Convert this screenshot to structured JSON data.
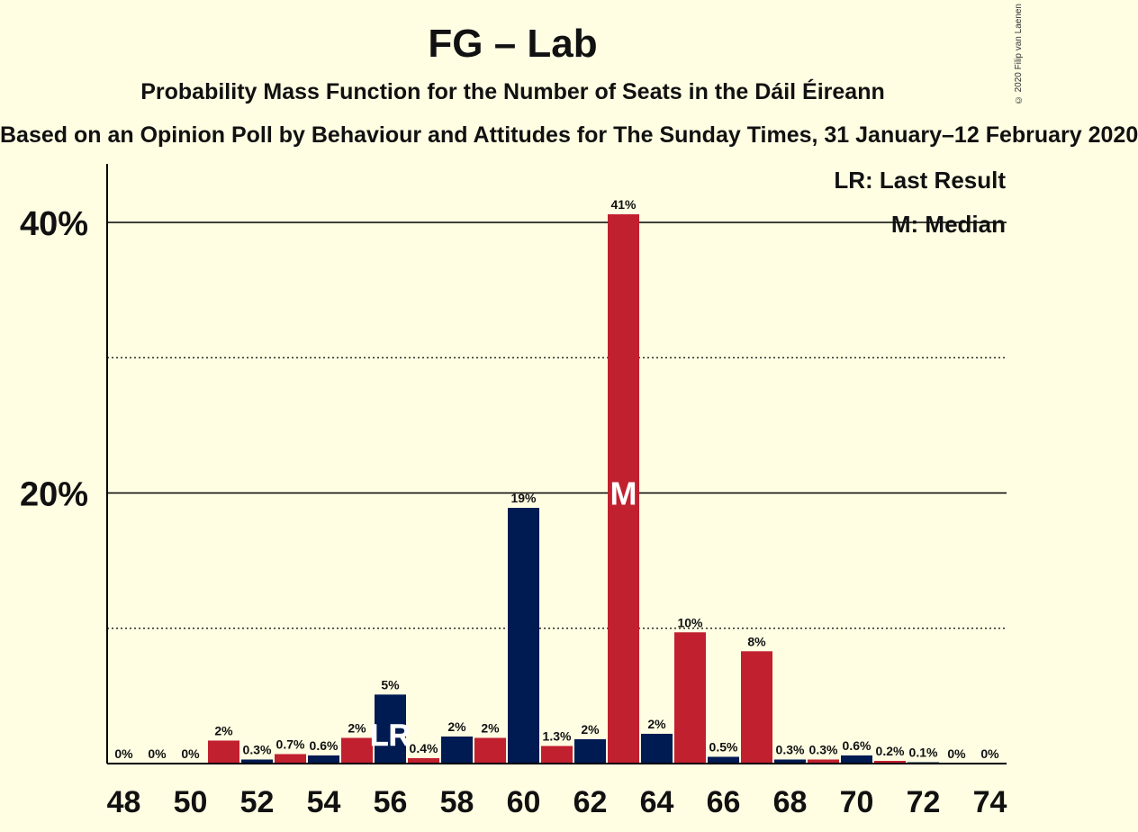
{
  "title": "FG – Lab",
  "subtitle": "Probability Mass Function for the Number of Seats in the Dáil Éireann",
  "source": "Based on an Opinion Poll by Behaviour and Attitudes for The Sunday Times, 31 January–12 February 2020",
  "copyright": "© 2020 Filip van Laenen",
  "legend": {
    "last_result": "LR: Last Result",
    "median": "M: Median"
  },
  "colors": {
    "FG": "#001A52",
    "Lab": "#C1202F",
    "background": "#FFFEE3"
  },
  "chart_data": {
    "type": "bar",
    "ylim": [
      0,
      44
    ],
    "y_ticks": [
      {
        "value": 20,
        "label": "20%"
      },
      {
        "value": 40,
        "label": "40%"
      }
    ],
    "y_minor": [
      10,
      30
    ],
    "x_ticks": [
      48,
      50,
      52,
      54,
      56,
      58,
      60,
      62,
      64,
      66,
      68,
      70,
      72,
      74
    ],
    "last_result": {
      "seat": 56,
      "marker": "LR"
    },
    "median": {
      "seat": 63,
      "marker": "M"
    },
    "bars": [
      {
        "seat": 48,
        "value": 0,
        "label": "0%"
      },
      {
        "seat": 49,
        "value": 0,
        "label": "0%"
      },
      {
        "seat": 50,
        "value": 0,
        "label": "0%"
      },
      {
        "seat": 51,
        "value": 1.7,
        "label": "2%"
      },
      {
        "seat": 52,
        "value": 0.3,
        "label": "0.3%"
      },
      {
        "seat": 53,
        "value": 0.7,
        "label": "0.7%"
      },
      {
        "seat": 54,
        "value": 0.6,
        "label": "0.6%"
      },
      {
        "seat": 55,
        "value": 1.9,
        "label": "2%"
      },
      {
        "seat": 56,
        "value": 5.1,
        "label": "5%"
      },
      {
        "seat": 57,
        "value": 0.4,
        "label": "0.4%"
      },
      {
        "seat": 58,
        "value": 2.0,
        "label": "2%"
      },
      {
        "seat": 59,
        "value": 1.9,
        "label": "2%"
      },
      {
        "seat": 60,
        "value": 18.9,
        "label": "19%"
      },
      {
        "seat": 61,
        "value": 1.3,
        "label": "1.3%"
      },
      {
        "seat": 62,
        "value": 1.8,
        "label": "2%"
      },
      {
        "seat": 63,
        "value": 40.6,
        "label": "41%"
      },
      {
        "seat": 64,
        "value": 2.2,
        "label": "2%"
      },
      {
        "seat": 65,
        "value": 9.7,
        "label": "10%"
      },
      {
        "seat": 66,
        "value": 0.5,
        "label": "0.5%"
      },
      {
        "seat": 67,
        "value": 8.3,
        "label": "8%"
      },
      {
        "seat": 68,
        "value": 0.3,
        "label": "0.3%"
      },
      {
        "seat": 69,
        "value": 0.3,
        "label": "0.3%"
      },
      {
        "seat": 70,
        "value": 0.6,
        "label": "0.6%"
      },
      {
        "seat": 71,
        "value": 0.2,
        "label": "0.2%"
      },
      {
        "seat": 72,
        "value": 0.1,
        "label": "0.1%"
      },
      {
        "seat": 73,
        "value": 0,
        "label": "0%"
      },
      {
        "seat": 74,
        "value": 0,
        "label": "0%"
      }
    ]
  }
}
